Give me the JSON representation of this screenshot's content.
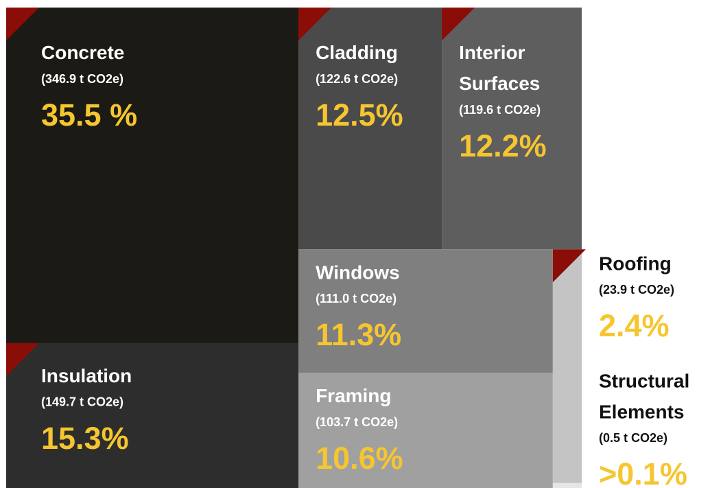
{
  "chart_data": {
    "type": "treemap",
    "categories": [
      "Concrete",
      "Cladding",
      "Interior Surfaces",
      "Windows",
      "Framing",
      "Insulation",
      "Roofing",
      "Structural Elements"
    ],
    "values": [
      346.9,
      122.6,
      119.6,
      111.0,
      103.7,
      149.7,
      23.9,
      0.5
    ],
    "value_labels": [
      "(346.9 t CO2e)",
      "(122.6 t CO2e)",
      "(119.6 t CO2e)",
      "(111.0 t CO2e)",
      "(103.7 t CO2e)",
      "(149.7 t CO2e)",
      "(23.9 t CO2e)",
      "(0.5 t CO2e)"
    ],
    "percents": [
      35.5,
      12.5,
      12.2,
      11.3,
      10.6,
      15.3,
      2.4,
      0.1
    ],
    "percent_labels": [
      "35.5 %",
      "12.5%",
      "12.2%",
      "11.3%",
      "10.6%",
      "15.3%",
      "2.4%",
      ">0.1%"
    ],
    "colors": [
      "#1b1a14",
      "#4a4a4a",
      "#5e5e5e",
      "#7f7f7f",
      "#a0a0a0",
      "#2d2d2d",
      "#c4c4c4",
      "#e6e6e6"
    ]
  }
}
